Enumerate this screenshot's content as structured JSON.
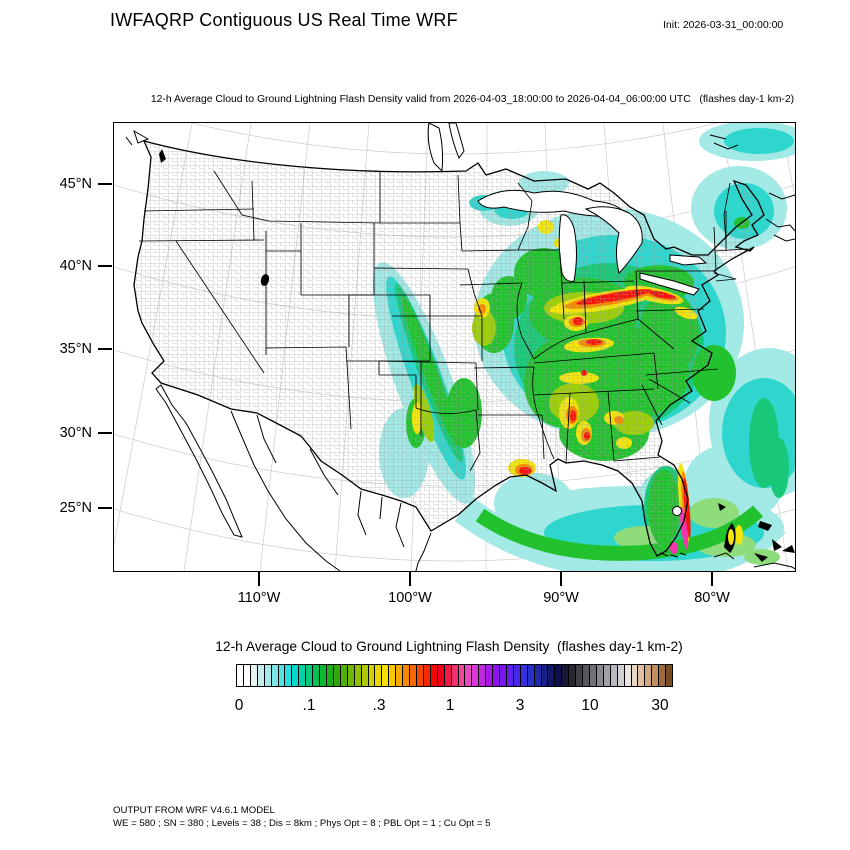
{
  "header": {
    "title": "IWFAQRP Contiguous US Real Time WRF",
    "init_label": "Init: 2026-03-31_00:00:00"
  },
  "map": {
    "subtitle": "12-h Average Cloud to Ground Lightning Flash Density valid from 2026-04-03_18:00:00 to 2026-04-04_06:00:00 UTC   (flashes day-1 km-2)",
    "lat_labels": [
      "45°N",
      "40°N",
      "35°N",
      "30°N",
      "25°N"
    ],
    "lon_labels": [
      "110°W",
      "100°W",
      "90°W",
      "80°W"
    ]
  },
  "colorbar": {
    "title": "12-h Average Cloud to Ground Lightning Flash Density  (flashes day-1 km-2)",
    "tick_labels": [
      "0",
      ".1",
      ".3",
      "1",
      "3",
      "10",
      "30"
    ],
    "colors": [
      "#ffffff",
      "#ffffff",
      "#e6f2f2",
      "#c6eeee",
      "#a4eaea",
      "#7ce6e6",
      "#54e2e2",
      "#2cdede",
      "#00d8cc",
      "#00d0a4",
      "#00c87c",
      "#00c054",
      "#0ab832",
      "#18b014",
      "#30a80a",
      "#50b008",
      "#70b800",
      "#90c000",
      "#b0c800",
      "#d0d000",
      "#e8d800",
      "#f8e000",
      "#f8c800",
      "#f8a800",
      "#f88800",
      "#f86800",
      "#f84800",
      "#f82800",
      "#f80800",
      "#f00020",
      "#f01848",
      "#f03070",
      "#f04898",
      "#e848c0",
      "#d838d8",
      "#c028e0",
      "#a818e8",
      "#9010f0",
      "#7818f0",
      "#6020f0",
      "#4828e8",
      "#3830e0",
      "#2830c8",
      "#2028a8",
      "#182088",
      "#101868",
      "#101050",
      "#181838",
      "#282830",
      "#404048",
      "#585860",
      "#707078",
      "#888890",
      "#a0a0a8",
      "#b8b8c0",
      "#d0d0d0",
      "#e8e4e0",
      "#e8d8c0",
      "#e0c0a0",
      "#d0a880",
      "#c09060",
      "#9c6c40",
      "#7a4c22"
    ]
  },
  "footer": {
    "line1": "OUTPUT FROM WRF V4.6.1 MODEL",
    "line2": "WE = 580 ; SN = 380 ; Levels = 38 ; Dis = 8km ; Phys Opt = 8 ; PBL Opt = 1 ; Cu Opt = 5"
  },
  "chart_data": {
    "type": "heatmap",
    "title": "12-h Average Cloud to Ground Lightning Flash Density",
    "units": "flashes day-1 km-2",
    "init": "2026-03-31_00:00:00",
    "valid_from": "2026-04-03_18:00:00",
    "valid_to": "2026-04-04_06:00:00 UTC",
    "projection": "Lambert conformal over contiguous US",
    "x_ticks_lon": [
      "110°W",
      "100°W",
      "90°W",
      "80°W"
    ],
    "y_ticks_lat": [
      "45°N",
      "40°N",
      "35°N",
      "30°N",
      "25°N"
    ],
    "scale": "logarithmic, labeled levels 0, .1, .3, 1, 3, 10, 30",
    "model_info": "WRF V4.6.1, WE=580, SN=380, Levels=38, Dis=8km, Phys Opt=8, PBL Opt=1, Cu Opt=5",
    "regions": [
      {
        "region": "Ohio Valley band (S Indiana - Ohio - W Virginia - central Pennsylvania)",
        "approx_peak": 1.0,
        "color": "red"
      },
      {
        "region": "Florida east coast down to the Keys",
        "approx_peak": 1.5,
        "color": "red/magenta"
      },
      {
        "region": "Louisiana coast near the delta",
        "approx_peak": 1.0,
        "color": "orange/red"
      },
      {
        "region": "Deep South (Mississippi/Alabama/Tennessee/Kentucky/Georgia)",
        "approx_range": [
          0.1,
          0.5
        ],
        "color": "green with yellow-orange cores"
      },
      {
        "region": "Diagonal band west Texas - Oklahoma - Missouri - Wisconsin",
        "approx_range": [
          0.02,
          0.3
        ],
        "color": "cyan/green with yellow cores"
      },
      {
        "region": "Gulf of Mexico swirl",
        "approx_range": [
          0.05,
          0.2
        ],
        "color": "green/cyan"
      },
      {
        "region": "Atlantic off the Southeast coast",
        "approx_range": [
          0.02,
          0.1
        ],
        "color": "cyan"
      },
      {
        "region": "Northeast / Maine and upper Midwest patches",
        "approx_range": [
          0.01,
          0.1
        ],
        "color": "pale cyan"
      },
      {
        "region": "Western US / northern Plains / Mexico",
        "approx_value": 0,
        "color": "white"
      }
    ]
  }
}
